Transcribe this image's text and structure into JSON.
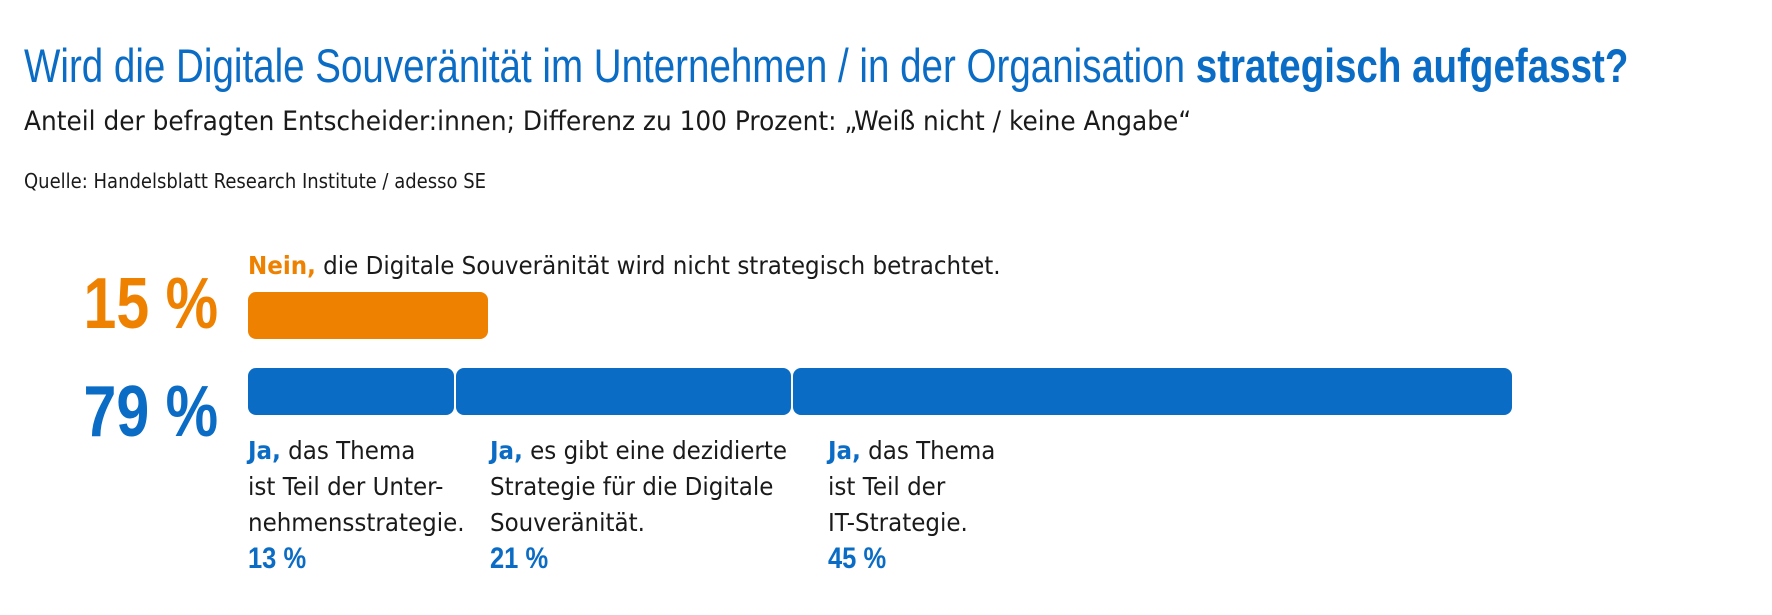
{
  "header": {
    "title_regular": "Wird die Digitale Souveränität im Unternehmen / in der Organisation",
    "title_bold": "strategisch aufgefasst?",
    "subtitle": "Anteil der befragten Entscheider:innen; Differenz zu 100 Prozent: „Weiß nicht / keine Angabe“",
    "source": "Quelle: Handelsblatt Research Institute / adesso SE"
  },
  "chart_data": {
    "type": "bar",
    "orientation": "horizontal",
    "stacked": true,
    "xlim": [
      0,
      80
    ],
    "colors": {
      "no": "#ee8100",
      "yes": "#0a6cc4"
    },
    "no": {
      "total_label": "15 %",
      "value": 15,
      "keyword": "Nein,",
      "text": "die Digitale Souveränität wird nicht strategisch betrachtet."
    },
    "yes": {
      "total_label": "79 %",
      "total": 79,
      "segments": [
        {
          "keyword": "Ja,",
          "lines": [
            "das Thema",
            "ist Teil der Unter-",
            "nehmensstrategie."
          ],
          "value": 13,
          "value_label": "13 %"
        },
        {
          "keyword": "Ja,",
          "lines": [
            "es gibt eine dezidierte",
            "Strategie für die Digitale",
            "Souveränität."
          ],
          "value": 21,
          "value_label": "21 %"
        },
        {
          "keyword": "Ja,",
          "lines": [
            "das Thema",
            "ist Teil der",
            "IT-Strategie."
          ],
          "value": 45,
          "value_label": "45 %"
        }
      ]
    }
  }
}
